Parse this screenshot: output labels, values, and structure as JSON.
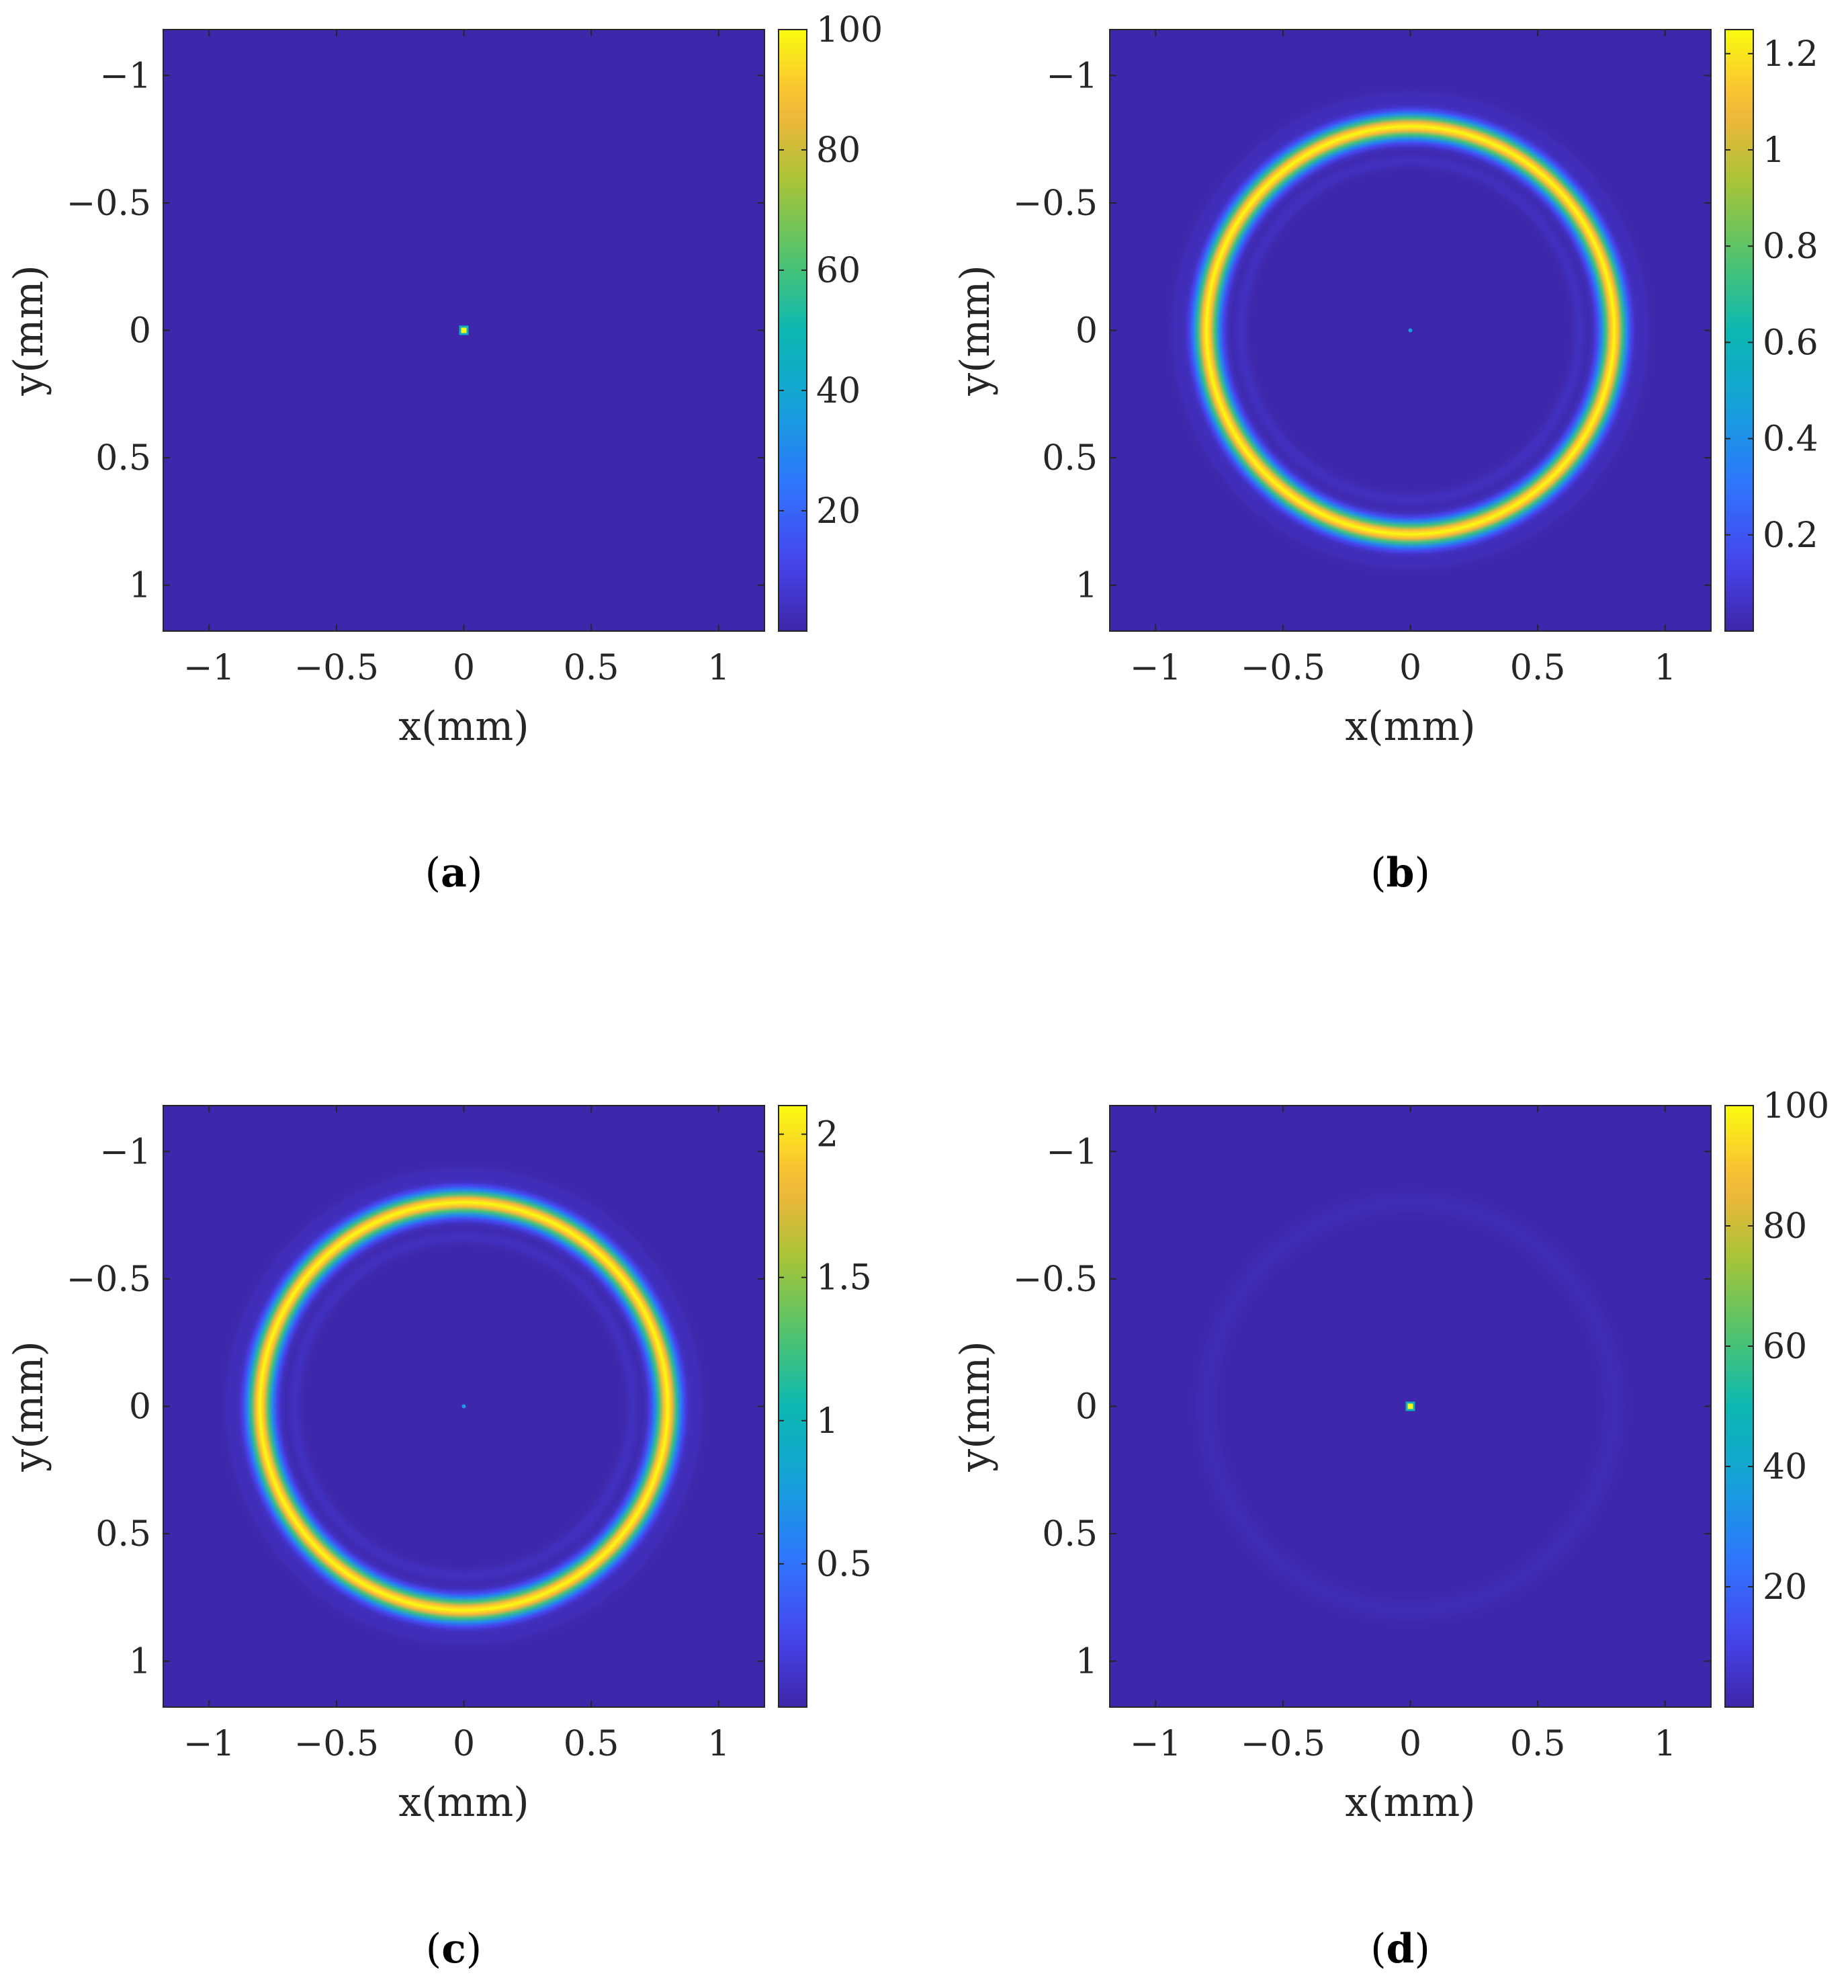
{
  "figure": {
    "panels": [
      {
        "label": "a",
        "colorbar_max": 100,
        "center_peak": 100,
        "ring_peak": 0,
        "ring_radius": 0.8,
        "ring_width": 0.045
      },
      {
        "label": "b",
        "colorbar_max": 1.25,
        "center_peak": 0.15,
        "ring_peak": 1.25,
        "ring_radius": 0.8,
        "ring_width": 0.045
      },
      {
        "label": "c",
        "colorbar_max": 2.1,
        "center_peak": 0.2,
        "ring_peak": 2.1,
        "ring_radius": 0.8,
        "ring_width": 0.045
      },
      {
        "label": "d",
        "colorbar_max": 100,
        "center_peak": 100,
        "ring_peak": 2.5,
        "ring_radius": 0.8,
        "ring_width": 0.045
      }
    ]
  },
  "chart_data": [
    {
      "type": "heatmap",
      "panel": "(a)",
      "xlabel": "x(mm)",
      "ylabel": "y(mm)",
      "xlim": [
        -1.18,
        1.18
      ],
      "ylim": [
        -1.18,
        1.18
      ],
      "y_axis_reversed": true,
      "xticks": [
        -1,
        -0.5,
        0,
        0.5,
        1
      ],
      "xtick_labels": [
        "−1",
        "−0.5",
        "0",
        "0.5",
        "1"
      ],
      "yticks": [
        -1,
        -0.5,
        0,
        0.5,
        1
      ],
      "ytick_labels": [
        "−1",
        "−0.5",
        "0",
        "0.5",
        "1"
      ],
      "colormap": "parula",
      "colorbar": {
        "range": [
          0,
          100
        ],
        "ticks": [
          20,
          40,
          60,
          80,
          100
        ],
        "tick_labels": [
          "20",
          "40",
          "60",
          "80",
          "100"
        ]
      },
      "features": [
        {
          "kind": "point",
          "x": 0,
          "y": 0,
          "value": 100
        }
      ]
    },
    {
      "type": "heatmap",
      "panel": "(b)",
      "xlabel": "x(mm)",
      "ylabel": "y(mm)",
      "xlim": [
        -1.18,
        1.18
      ],
      "ylim": [
        -1.18,
        1.18
      ],
      "y_axis_reversed": true,
      "xticks": [
        -1,
        -0.5,
        0,
        0.5,
        1
      ],
      "xtick_labels": [
        "−1",
        "−0.5",
        "0",
        "0.5",
        "1"
      ],
      "yticks": [
        -1,
        -0.5,
        0,
        0.5,
        1
      ],
      "ytick_labels": [
        "−1",
        "−0.5",
        "0",
        "0.5",
        "1"
      ],
      "colormap": "parula",
      "colorbar": {
        "range": [
          0,
          1.25
        ],
        "ticks": [
          0.2,
          0.4,
          0.6,
          0.8,
          1,
          1.2
        ],
        "tick_labels": [
          "0.2",
          "0.4",
          "0.6",
          "0.8",
          "1",
          "1.2"
        ]
      },
      "features": [
        {
          "kind": "ring",
          "center": [
            0,
            0
          ],
          "radius": 0.8,
          "value": 1.25
        },
        {
          "kind": "point",
          "x": 0,
          "y": 0,
          "value": 0.15
        }
      ]
    },
    {
      "type": "heatmap",
      "panel": "(c)",
      "xlabel": "x(mm)",
      "ylabel": "y(mm)",
      "xlim": [
        -1.18,
        1.18
      ],
      "ylim": [
        -1.18,
        1.18
      ],
      "y_axis_reversed": true,
      "xticks": [
        -1,
        -0.5,
        0,
        0.5,
        1
      ],
      "xtick_labels": [
        "−1",
        "−0.5",
        "0",
        "0.5",
        "1"
      ],
      "yticks": [
        -1,
        -0.5,
        0,
        0.5,
        1
      ],
      "ytick_labels": [
        "−1",
        "−0.5",
        "0",
        "0.5",
        "1"
      ],
      "colormap": "parula",
      "colorbar": {
        "range": [
          0,
          2.1
        ],
        "ticks": [
          0.5,
          1,
          1.5,
          2
        ],
        "tick_labels": [
          "0.5",
          "1",
          "1.5",
          "2"
        ]
      },
      "features": [
        {
          "kind": "ring",
          "center": [
            0,
            0
          ],
          "radius": 0.8,
          "value": 2.1
        },
        {
          "kind": "point",
          "x": 0,
          "y": 0,
          "value": 0.2
        }
      ]
    },
    {
      "type": "heatmap",
      "panel": "(d)",
      "xlabel": "x(mm)",
      "ylabel": "y(mm)",
      "xlim": [
        -1.18,
        1.18
      ],
      "ylim": [
        -1.18,
        1.18
      ],
      "y_axis_reversed": true,
      "xticks": [
        -1,
        -0.5,
        0,
        0.5,
        1
      ],
      "xtick_labels": [
        "−1",
        "−0.5",
        "0",
        "0.5",
        "1"
      ],
      "yticks": [
        -1,
        -0.5,
        0,
        0.5,
        1
      ],
      "ytick_labels": [
        "−1",
        "−0.5",
        "0",
        "0.5",
        "1"
      ],
      "colormap": "parula",
      "colorbar": {
        "range": [
          0,
          100
        ],
        "ticks": [
          20,
          40,
          60,
          80,
          100
        ],
        "tick_labels": [
          "20",
          "40",
          "60",
          "80",
          "100"
        ]
      },
      "features": [
        {
          "kind": "point",
          "x": 0,
          "y": 0,
          "value": 100
        },
        {
          "kind": "ring",
          "center": [
            0,
            0
          ],
          "radius": 0.8,
          "value": 2.5
        }
      ]
    }
  ]
}
